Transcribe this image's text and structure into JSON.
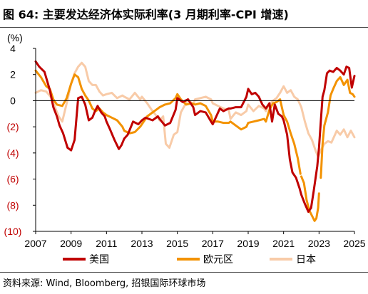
{
  "figure": {
    "title": "图 64: 主要发达经济体实际利率(3 月期利率-CPI 增速)",
    "source": "资料来源: Wind, Bloomberg, 招银国际环球市场"
  },
  "chart_data": {
    "type": "line",
    "ylabel": "(%)",
    "xlabel": "",
    "ylim": [
      -10,
      4
    ],
    "xlim": [
      2007,
      2025
    ],
    "x_ticks": [
      2007,
      2009,
      2011,
      2013,
      2015,
      2017,
      2019,
      2021,
      2023,
      2025
    ],
    "x_tick_labels": [
      "2007",
      "2009",
      "2011",
      "2013",
      "2015",
      "2017",
      "2019",
      "2021",
      "2023",
      "2025"
    ],
    "y_ticks": [
      4,
      2,
      0,
      -2,
      -4,
      -6,
      -8,
      -10
    ],
    "y_tick_labels": [
      "4",
      "2",
      "0",
      "(2)",
      "(4)",
      "(6)",
      "(8)",
      "(10)"
    ],
    "grid": false,
    "zero_line": true,
    "legend_position": "bottom",
    "negative_tick_color": "#c00000",
    "positive_tick_color": "#000000",
    "series": [
      {
        "name": "美国",
        "color": "#c00000",
        "points": [
          [
            2007.0,
            3.0
          ],
          [
            2007.2,
            2.6
          ],
          [
            2007.5,
            2.2
          ],
          [
            2007.8,
            0.8
          ],
          [
            2008.0,
            -0.5
          ],
          [
            2008.2,
            -1.2
          ],
          [
            2008.35,
            -1.9
          ],
          [
            2008.55,
            -2.5
          ],
          [
            2008.8,
            -3.6
          ],
          [
            2009.0,
            -3.8
          ],
          [
            2009.2,
            -3.0
          ],
          [
            2009.4,
            0.2
          ],
          [
            2009.6,
            0.3
          ],
          [
            2009.8,
            -0.3
          ],
          [
            2010.0,
            -1.5
          ],
          [
            2010.2,
            -1.3
          ],
          [
            2010.35,
            -0.8
          ],
          [
            2010.5,
            -0.4
          ],
          [
            2010.7,
            -0.9
          ],
          [
            2010.9,
            -1.2
          ],
          [
            2011.0,
            -1.6
          ],
          [
            2011.2,
            -2.2
          ],
          [
            2011.45,
            -3.0
          ],
          [
            2011.7,
            -3.7
          ],
          [
            2011.85,
            -3.4
          ],
          [
            2012.0,
            -2.9
          ],
          [
            2012.2,
            -2.6
          ],
          [
            2012.5,
            -1.6
          ],
          [
            2012.8,
            -1.8
          ],
          [
            2013.0,
            -1.5
          ],
          [
            2013.2,
            -1.3
          ],
          [
            2013.4,
            -1.4
          ],
          [
            2013.6,
            -1.5
          ],
          [
            2013.9,
            -1.2
          ],
          [
            2014.0,
            -1.4
          ],
          [
            2014.3,
            -1.9
          ],
          [
            2014.6,
            -1.7
          ],
          [
            2014.9,
            -0.7
          ],
          [
            2015.0,
            0.2
          ],
          [
            2015.3,
            -0.1
          ],
          [
            2015.6,
            0.1
          ],
          [
            2015.9,
            -0.5
          ],
          [
            2016.0,
            -1.1
          ],
          [
            2016.3,
            -0.8
          ],
          [
            2016.6,
            -0.9
          ],
          [
            2016.9,
            -1.6
          ],
          [
            2017.0,
            -1.8
          ],
          [
            2017.2,
            -1.2
          ],
          [
            2017.4,
            -0.6
          ],
          [
            2017.6,
            -0.8
          ],
          [
            2017.9,
            -0.6
          ],
          [
            2018.0,
            -0.6
          ],
          [
            2018.3,
            -0.5
          ],
          [
            2018.6,
            -0.5
          ],
          [
            2018.9,
            0.3
          ],
          [
            2019.0,
            0.9
          ],
          [
            2019.2,
            0.5
          ],
          [
            2019.4,
            0.6
          ],
          [
            2019.6,
            0.3
          ],
          [
            2019.8,
            -0.3
          ],
          [
            2020.0,
            -0.6
          ],
          [
            2020.2,
            -0.2
          ],
          [
            2020.35,
            -1.6
          ],
          [
            2020.5,
            -0.3
          ],
          [
            2020.7,
            -1.0
          ],
          [
            2020.9,
            -1.2
          ],
          [
            2021.0,
            -1.5
          ],
          [
            2021.2,
            -2.6
          ],
          [
            2021.35,
            -4.5
          ],
          [
            2021.5,
            -5.5
          ],
          [
            2021.7,
            -5.9
          ],
          [
            2021.9,
            -6.7
          ],
          [
            2022.0,
            -7.2
          ],
          [
            2022.2,
            -7.9
          ],
          [
            2022.4,
            -8.5
          ],
          [
            2022.55,
            -8.2
          ],
          [
            2022.7,
            -6.9
          ],
          [
            2022.9,
            -5.0
          ],
          [
            2023.0,
            -3.6
          ],
          [
            2023.1,
            -1.6
          ],
          [
            2023.2,
            0.3
          ],
          [
            2023.3,
            0.8
          ],
          [
            2023.45,
            2.1
          ],
          [
            2023.6,
            2.3
          ],
          [
            2023.8,
            2.2
          ],
          [
            2024.0,
            2.5
          ],
          [
            2024.2,
            2.3
          ],
          [
            2024.4,
            2.0
          ],
          [
            2024.55,
            2.6
          ],
          [
            2024.7,
            2.5
          ],
          [
            2024.85,
            1.0
          ],
          [
            2025.0,
            1.9
          ]
        ]
      },
      {
        "name": "欧元区",
        "color": "#f39200",
        "points": [
          [
            2007.0,
            2.3
          ],
          [
            2007.3,
            1.8
          ],
          [
            2007.6,
            1.1
          ],
          [
            2007.8,
            0.9
          ],
          [
            2008.0,
            0.1
          ],
          [
            2008.2,
            -0.3
          ],
          [
            2008.5,
            -0.4
          ],
          [
            2008.75,
            0.2
          ],
          [
            2009.0,
            1.3
          ],
          [
            2009.2,
            2.0
          ],
          [
            2009.4,
            1.8
          ],
          [
            2009.6,
            0.9
          ],
          [
            2009.8,
            0.4
          ],
          [
            2010.0,
            0.0
          ],
          [
            2010.2,
            -0.6
          ],
          [
            2010.4,
            -0.8
          ],
          [
            2010.6,
            -0.6
          ],
          [
            2010.8,
            -0.9
          ],
          [
            2011.0,
            -1.1
          ],
          [
            2011.3,
            -1.3
          ],
          [
            2011.6,
            -1.5
          ],
          [
            2011.9,
            -2.0
          ],
          [
            2012.0,
            -2.3
          ],
          [
            2012.3,
            -2.5
          ],
          [
            2012.6,
            -2.4
          ],
          [
            2012.9,
            -2.0
          ],
          [
            2013.0,
            -1.8
          ],
          [
            2013.3,
            -1.2
          ],
          [
            2013.6,
            -0.9
          ],
          [
            2013.9,
            -0.6
          ],
          [
            2014.0,
            -0.5
          ],
          [
            2014.3,
            -0.3
          ],
          [
            2014.6,
            -0.2
          ],
          [
            2014.9,
            0.2
          ],
          [
            2015.0,
            0.5
          ],
          [
            2015.2,
            0.1
          ],
          [
            2015.5,
            -0.3
          ],
          [
            2015.8,
            -0.2
          ],
          [
            2016.0,
            -0.3
          ],
          [
            2016.3,
            -0.2
          ],
          [
            2016.6,
            -0.4
          ],
          [
            2016.9,
            -1.1
          ],
          [
            2017.0,
            -1.6
          ],
          [
            2017.3,
            -1.6
          ],
          [
            2017.6,
            -1.7
          ],
          [
            2017.9,
            -1.7
          ],
          [
            2018.0,
            -1.6
          ],
          [
            2018.3,
            -1.9
          ],
          [
            2018.6,
            -2.2
          ],
          [
            2018.9,
            -2.0
          ],
          [
            2019.0,
            -1.7
          ],
          [
            2019.3,
            -1.6
          ],
          [
            2019.6,
            -1.5
          ],
          [
            2019.9,
            -1.4
          ],
          [
            2020.0,
            -1.6
          ],
          [
            2020.2,
            -0.7
          ],
          [
            2020.4,
            -0.2
          ],
          [
            2020.6,
            -0.1
          ],
          [
            2020.8,
            0.1
          ],
          [
            2021.0,
            -1.1
          ],
          [
            2021.2,
            -1.6
          ],
          [
            2021.4,
            -2.5
          ],
          [
            2021.6,
            -3.3
          ],
          [
            2021.8,
            -4.4
          ],
          [
            2021.95,
            -5.6
          ],
          [
            null,
            null
          ],
          [
            2022.0,
            -5.8
          ],
          [
            2022.15,
            -6.3
          ],
          [
            2022.3,
            -7.6
          ],
          [
            2022.45,
            -8.4
          ],
          [
            2022.6,
            -8.8
          ],
          [
            2022.75,
            -9.2
          ],
          [
            2022.85,
            -9.0
          ],
          [
            2022.95,
            -8.2
          ],
          [
            2023.0,
            -7.1
          ],
          [
            null,
            null
          ],
          [
            2023.1,
            -5.9
          ],
          [
            2023.2,
            -3.3
          ],
          [
            2023.3,
            -1.9
          ],
          [
            2023.5,
            -0.9
          ],
          [
            2023.65,
            0.4
          ],
          [
            2023.8,
            0.9
          ],
          [
            2024.0,
            1.5
          ],
          [
            2024.2,
            1.8
          ],
          [
            2024.4,
            1.2
          ],
          [
            2024.6,
            1.6
          ],
          [
            2024.75,
            0.6
          ],
          [
            2024.9,
            0.5
          ],
          [
            2025.0,
            0.3
          ]
        ]
      },
      {
        "name": "日本",
        "color": "#f8cba8",
        "points": [
          [
            2007.0,
            0.6
          ],
          [
            2007.3,
            0.8
          ],
          [
            2007.6,
            0.7
          ],
          [
            2007.9,
            0.2
          ],
          [
            2008.0,
            -0.2
          ],
          [
            2008.3,
            -1.2
          ],
          [
            2008.5,
            -1.6
          ],
          [
            2008.75,
            -0.2
          ],
          [
            2009.0,
            1.3
          ],
          [
            2009.2,
            2.1
          ],
          [
            2009.4,
            2.6
          ],
          [
            2009.6,
            2.9
          ],
          [
            2009.8,
            2.6
          ],
          [
            2010.0,
            1.5
          ],
          [
            2010.2,
            1.2
          ],
          [
            2010.4,
            1.2
          ],
          [
            2010.6,
            0.7
          ],
          [
            2010.8,
            0.4
          ],
          [
            2011.0,
            0.5
          ],
          [
            2011.3,
            0.6
          ],
          [
            2011.6,
            0.2
          ],
          [
            2011.9,
            0.4
          ],
          [
            2012.0,
            0.3
          ],
          [
            2012.3,
            0.1
          ],
          [
            2012.6,
            0.6
          ],
          [
            2012.9,
            0.1
          ],
          [
            2013.0,
            0.3
          ],
          [
            2013.3,
            -0.2
          ],
          [
            2013.6,
            -0.8
          ],
          [
            2013.9,
            -1.3
          ],
          [
            2014.0,
            -1.5
          ],
          [
            2014.2,
            -1.2
          ],
          [
            2014.35,
            -3.3
          ],
          [
            2014.55,
            -3.6
          ],
          [
            2014.8,
            -2.6
          ],
          [
            2015.0,
            -2.4
          ],
          [
            2015.2,
            -0.9
          ],
          [
            2015.4,
            -0.4
          ],
          [
            2015.6,
            0.1
          ],
          [
            2015.9,
            -0.3
          ],
          [
            2016.0,
            0.1
          ],
          [
            2016.3,
            0.2
          ],
          [
            2016.6,
            0.3
          ],
          [
            2016.9,
            0.1
          ],
          [
            2017.0,
            -0.2
          ],
          [
            2017.3,
            -0.4
          ],
          [
            2017.6,
            -0.6
          ],
          [
            2017.9,
            -0.7
          ],
          [
            2018.0,
            -1.4
          ],
          [
            2018.3,
            -0.9
          ],
          [
            2018.6,
            -1.1
          ],
          [
            2018.9,
            -0.8
          ],
          [
            2019.0,
            -0.3
          ],
          [
            2019.3,
            -0.8
          ],
          [
            2019.6,
            -0.4
          ],
          [
            2019.9,
            -0.6
          ],
          [
            2020.0,
            -0.8
          ],
          [
            2020.2,
            -0.3
          ],
          [
            2020.4,
            0.0
          ],
          [
            2020.6,
            0.2
          ],
          [
            2020.8,
            0.6
          ],
          [
            2021.0,
            1.1
          ],
          [
            2021.2,
            0.6
          ],
          [
            2021.4,
            0.8
          ],
          [
            2021.6,
            0.3
          ],
          [
            2021.8,
            0.1
          ],
          [
            2022.0,
            -0.5
          ],
          [
            2022.2,
            -1.6
          ],
          [
            2022.4,
            -2.5
          ],
          [
            2022.6,
            -3.0
          ],
          [
            2022.8,
            -3.8
          ],
          [
            2022.95,
            -4.3
          ],
          [
            2023.1,
            -3.8
          ],
          [
            2023.3,
            -3.3
          ],
          [
            2023.5,
            -3.1
          ],
          [
            2023.7,
            -3.2
          ],
          [
            2023.9,
            -2.6
          ],
          [
            2024.0,
            -2.3
          ],
          [
            2024.2,
            -2.6
          ],
          [
            2024.4,
            -2.2
          ],
          [
            2024.6,
            -2.8
          ],
          [
            2024.8,
            -2.3
          ],
          [
            2025.0,
            -2.8
          ]
        ]
      }
    ]
  }
}
